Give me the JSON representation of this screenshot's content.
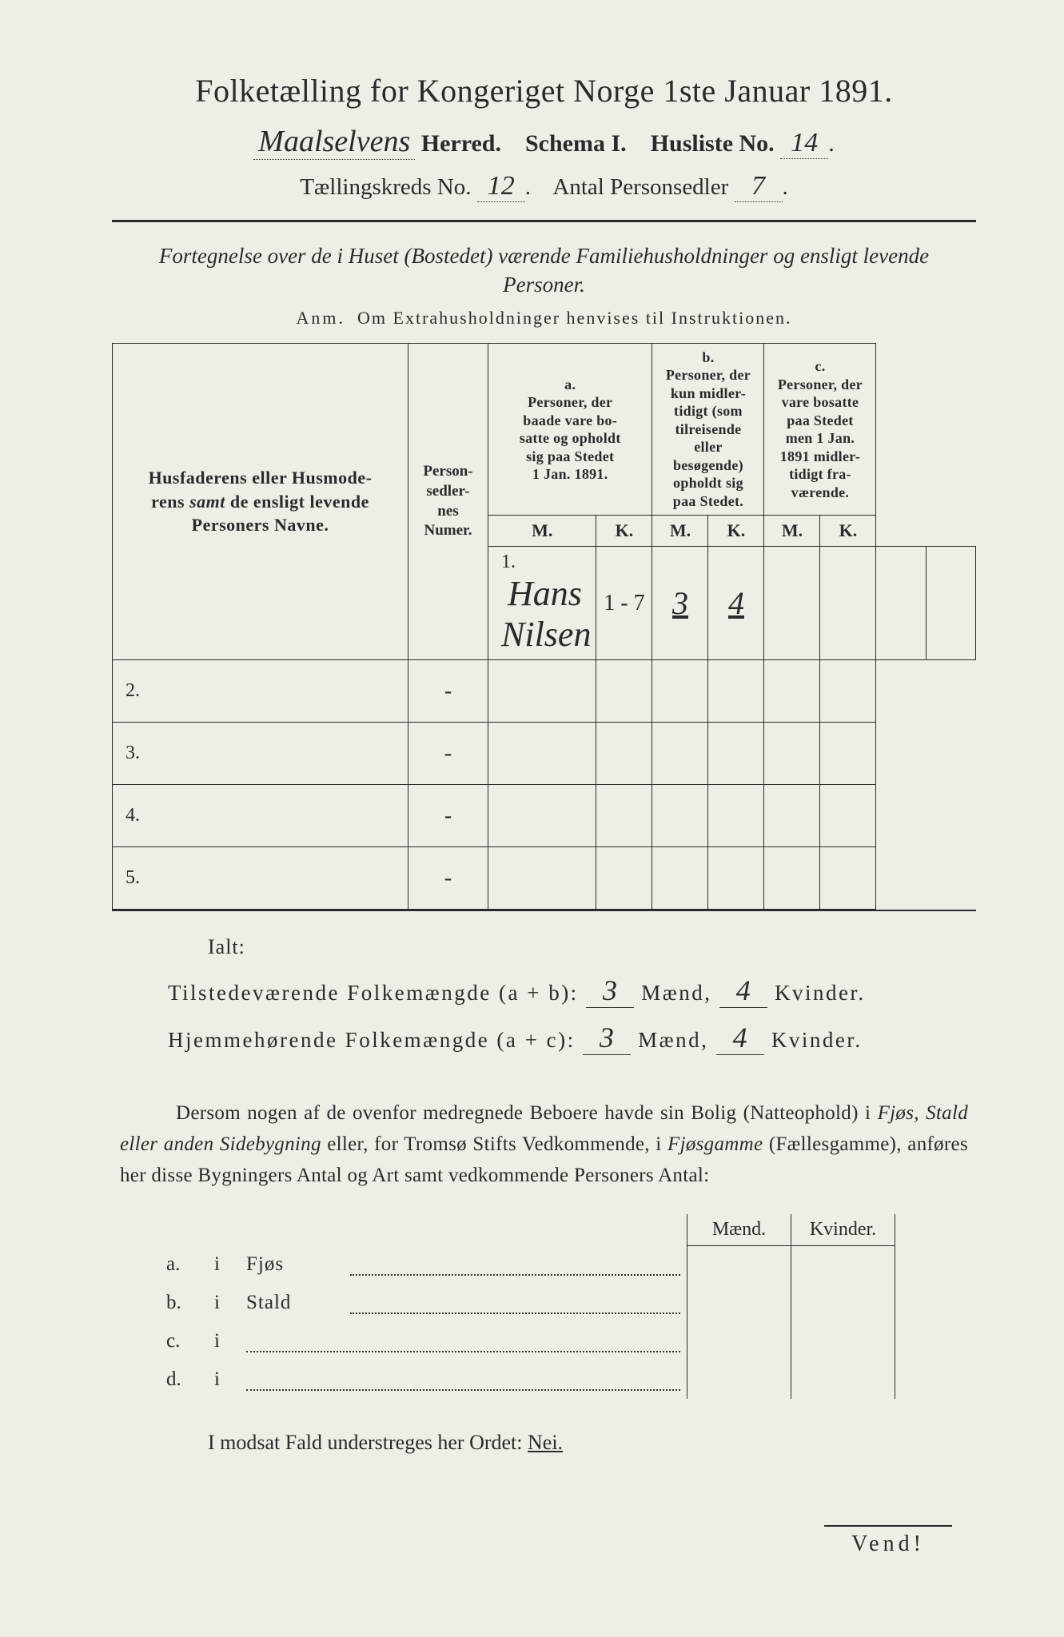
{
  "title": "Folketælling for Kongeriget Norge 1ste Januar 1891.",
  "header": {
    "herred_value": "Maalselvens",
    "herred_label": "Herred.",
    "schema_label": "Schema I.",
    "husliste_label": "Husliste No.",
    "husliste_value": "14",
    "kreds_label": "Tællingskreds No.",
    "kreds_value": "12",
    "antal_label": "Antal Personsedler",
    "antal_value": "7"
  },
  "subtitle": "Fortegnelse over de i Huset (Bostedet) værende Familiehusholdninger og ensligt levende Personer.",
  "anm_label": "Anm.",
  "anm_text": "Om Extrahusholdninger henvises til Instruktionen.",
  "table": {
    "col_name": "Husfaderens eller Husmoderens samt de ensligt levende Personers Navne.",
    "col_num": "Person-sedler-nes Numer.",
    "group_a_label": "a.",
    "group_a_text": "Personer, der baade vare bosatte og opholdt sig paa Stedet 1 Jan. 1891.",
    "group_b_label": "b.",
    "group_b_text": "Personer, der kun midlertidigt (som tilreisende eller besøgende) opholdt sig paa Stedet.",
    "group_c_label": "c.",
    "group_c_text": "Personer, der vare bosatte paa Stedet men 1 Jan. 1891 midlertidigt fraværende.",
    "m": "M.",
    "k": "K.",
    "rows": [
      {
        "n": "1.",
        "name": "Hans Nilsen",
        "num": "1 - 7",
        "a_m": "3",
        "a_k": "4",
        "b_m": "",
        "b_k": "",
        "c_m": "",
        "c_k": ""
      },
      {
        "n": "2.",
        "name": "",
        "num": "-",
        "a_m": "",
        "a_k": "",
        "b_m": "",
        "b_k": "",
        "c_m": "",
        "c_k": ""
      },
      {
        "n": "3.",
        "name": "",
        "num": "-",
        "a_m": "",
        "a_k": "",
        "b_m": "",
        "b_k": "",
        "c_m": "",
        "c_k": ""
      },
      {
        "n": "4.",
        "name": "",
        "num": "-",
        "a_m": "",
        "a_k": "",
        "b_m": "",
        "b_k": "",
        "c_m": "",
        "c_k": ""
      },
      {
        "n": "5.",
        "name": "",
        "num": "-",
        "a_m": "",
        "a_k": "",
        "b_m": "",
        "b_k": "",
        "c_m": "",
        "c_k": ""
      }
    ]
  },
  "ialt": "Ialt:",
  "sum1": {
    "label": "Tilstedeværende Folkemængde (a + b):",
    "m_val": "3",
    "m_lab": "Mænd,",
    "k_val": "4",
    "k_lab": "Kvinder."
  },
  "sum2": {
    "label": "Hjemmehørende Folkemængde (a + c):",
    "m_val": "3",
    "m_lab": "Mænd,",
    "k_val": "4",
    "k_lab": "Kvinder."
  },
  "para": "Dersom nogen af de ovenfor medregnede Beboere havde sin Bolig (Natteophold) i Fjøs, Stald eller anden Sidebygning eller, for Tromsø Stifts Vedkommende, i Fjøsgamme (Fællesgamme), anføres her disse Bygningers Antal og Art samt vedkommende Personers Antal:",
  "btable": {
    "maend": "Mænd.",
    "kvinder": "Kvinder.",
    "rows": [
      {
        "lab": "a.",
        "i": "i",
        "type": "Fjøs"
      },
      {
        "lab": "b.",
        "i": "i",
        "type": "Stald"
      },
      {
        "lab": "c.",
        "i": "i",
        "type": ""
      },
      {
        "lab": "d.",
        "i": "i",
        "type": ""
      }
    ]
  },
  "modsat_pre": "I modsat Fald understreges her Ordet:",
  "modsat_nei": "Nei.",
  "vend": "Vend!",
  "colors": {
    "paper": "#f0ede6",
    "ink": "#2a2a2a"
  }
}
